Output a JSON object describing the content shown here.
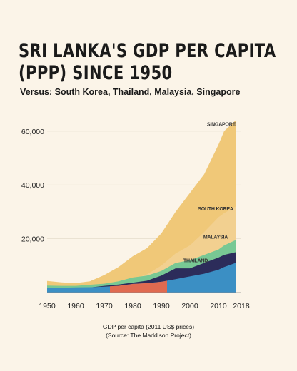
{
  "header": {
    "title_line1": "SRI LANKA'S GDP PER CAPITA",
    "title_line2": "(PPP) SINCE 1950",
    "subtitle": "Versus: South Korea, Thailand, Malaysia, Singapore"
  },
  "caption": {
    "line1": "GDP per capita (2011 US$ prices)",
    "line2": "(Source: The Maddison Project)"
  },
  "colors": {
    "singapore": "#f0c878",
    "south_korea": "#f2d090",
    "malaysia": "#78c894",
    "thailand": "#2c2c5a",
    "sri_lanka": "#3b8fc4",
    "highlight": "#e06a50",
    "background": "#fbf4e8"
  },
  "chart_data": {
    "type": "area",
    "title": "SRI LANKA'S GDP PER CAPITA (PPP) SINCE 1950",
    "subtitle": "Versus: South Korea, Thailand, Malaysia, Singapore",
    "xlabel": "GDP per capita (2011 US$ prices)",
    "ylabel": "",
    "xlim": [
      1950,
      2018
    ],
    "ylim": [
      0,
      65000
    ],
    "x_ticks": [
      1950,
      1960,
      1970,
      1980,
      1990,
      2000,
      2010,
      2018
    ],
    "y_ticks": [
      20000,
      40000,
      60000
    ],
    "y_tick_labels": [
      "20,000",
      "40,000",
      "60,000"
    ],
    "grid": true,
    "legend": "inline labels",
    "x": [
      1950,
      1955,
      1960,
      1965,
      1970,
      1975,
      1980,
      1985,
      1990,
      1995,
      2000,
      2005,
      2010,
      2012,
      2016
    ],
    "series": [
      {
        "name": "SINGAPORE",
        "color": "#f0c878",
        "values": [
          4300,
          3800,
          3500,
          4200,
          6500,
          9500,
          13500,
          16500,
          22000,
          30000,
          37000,
          44000,
          55000,
          60000,
          64000
        ]
      },
      {
        "name": "SOUTH KOREA",
        "color": "#f2d090",
        "values": [
          1200,
          1500,
          1600,
          1900,
          2700,
          3900,
          5000,
          6800,
          10000,
          14500,
          17500,
          22500,
          28000,
          29500,
          32000
        ]
      },
      {
        "name": "MALAYSIA",
        "color": "#78c894",
        "values": [
          2600,
          2500,
          2500,
          2900,
          3300,
          4200,
          5600,
          6300,
          8000,
          11000,
          12000,
          14000,
          16000,
          17500,
          19500
        ]
      },
      {
        "name": "THAILAND",
        "color": "#2c2c5a",
        "values": [
          1200,
          1350,
          1500,
          1900,
          2500,
          3000,
          3700,
          4400,
          6300,
          9000,
          9000,
          11000,
          13000,
          14000,
          15000
        ]
      },
      {
        "name": "",
        "color": "#3b8fc4",
        "values": [
          1700,
          1800,
          1900,
          2000,
          2200,
          2500,
          3200,
          3500,
          4000,
          5000,
          6000,
          7000,
          8500,
          9500,
          11000
        ]
      }
    ],
    "annotations": [
      "SINGAPORE",
      "SOUTH KOREA",
      "MALAYSIA",
      "THAILAND"
    ]
  }
}
